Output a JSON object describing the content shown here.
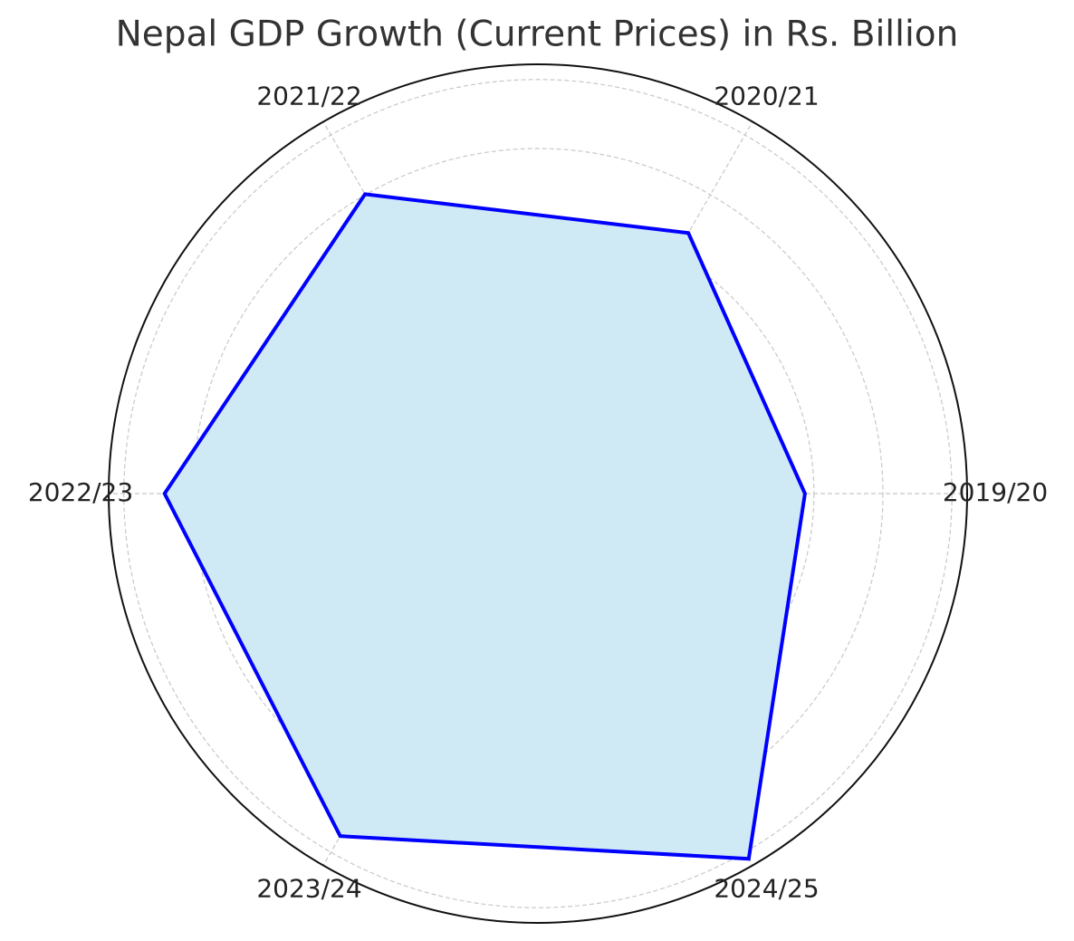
{
  "chart_data": {
    "type": "radar",
    "title": "Nepal GDP Growth (Current Prices) in Rs. Billion",
    "categories": [
      "2019/20",
      "2020/21",
      "2021/22",
      "2022/23",
      "2023/24",
      "2024/25"
    ],
    "series": [
      {
        "values": [
          3870,
          4360,
          5010,
          5410,
          5730,
          6110
        ],
        "color": "#0000ff",
        "fill": "#cfe9f5"
      }
    ],
    "ylim": [
      0,
      6220
    ],
    "yticks": [
      1000,
      2000,
      3000,
      4000,
      5000,
      6000
    ],
    "grid": true
  }
}
